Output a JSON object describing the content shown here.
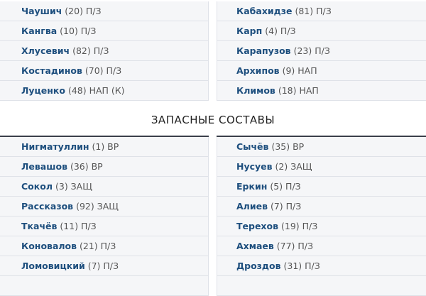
{
  "starters": {
    "left": [
      {
        "name": "Чаушич",
        "detail": "(20) П/З"
      },
      {
        "name": "Кангва",
        "detail": "(10) П/З"
      },
      {
        "name": "Хлусевич",
        "detail": "(82) П/З"
      },
      {
        "name": "Костадинов",
        "detail": "(70) П/З"
      },
      {
        "name": "Луценко",
        "detail": "(48) НАП (К)"
      }
    ],
    "right": [
      {
        "name": "Кабахидзе",
        "detail": "(81) П/З"
      },
      {
        "name": "Карп",
        "detail": "(4) П/З"
      },
      {
        "name": "Карапузов",
        "detail": "(23) П/З"
      },
      {
        "name": "Архипов",
        "detail": "(9) НАП"
      },
      {
        "name": "Климов",
        "detail": "(18) НАП"
      }
    ]
  },
  "substitutes": {
    "title": "ЗАПАСНЫЕ СОСТАВЫ",
    "left": [
      {
        "name": "Нигматуллин",
        "detail": "(1) ВР"
      },
      {
        "name": "Левашов",
        "detail": "(36) ВР"
      },
      {
        "name": "Сокол",
        "detail": "(3) ЗАЩ"
      },
      {
        "name": "Рассказов",
        "detail": "(92) ЗАЩ"
      },
      {
        "name": "Ткачёв",
        "detail": "(11) П/З"
      },
      {
        "name": "Коновалов",
        "detail": "(21) П/З"
      },
      {
        "name": "Ломовицкий",
        "detail": "(7) П/З"
      }
    ],
    "right": [
      {
        "name": "Сычёв",
        "detail": "(35) ВР"
      },
      {
        "name": "Нусуев",
        "detail": "(2) ЗАЩ"
      },
      {
        "name": "Еркин",
        "detail": "(5) П/З"
      },
      {
        "name": "Алиев",
        "detail": "(7) П/З"
      },
      {
        "name": "Терехов",
        "detail": "(19) П/З"
      },
      {
        "name": "Ахмаев",
        "detail": "(77) П/З"
      },
      {
        "name": "Дроздов",
        "detail": "(31) П/З"
      }
    ]
  }
}
